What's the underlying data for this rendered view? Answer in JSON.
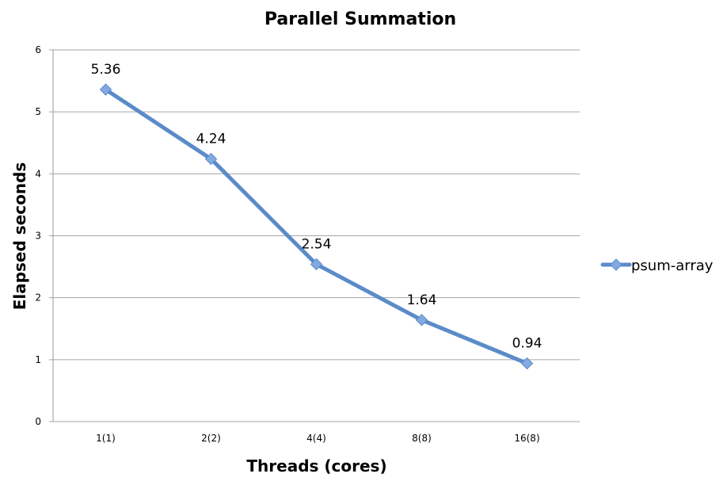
{
  "chart_data": {
    "type": "line",
    "title": "Parallel Summation",
    "xlabel": "Threads (cores)",
    "ylabel": "Elapsed seconds",
    "categories": [
      "1(1)",
      "2(2)",
      "4(4)",
      "8(8)",
      "16(8)"
    ],
    "series": [
      {
        "name": "psum-array",
        "values": [
          5.36,
          4.24,
          2.54,
          1.64,
          0.94
        ],
        "color": "#5b8bc9",
        "marker": "diamond",
        "marker_color": "#82a9e0"
      }
    ],
    "data_labels": [
      "5.36",
      "4.24",
      "2.54",
      "1.64",
      "0.94"
    ],
    "ylim": [
      0,
      6
    ],
    "yticks": [
      "0",
      "1",
      "2",
      "3",
      "4",
      "5",
      "6"
    ],
    "grid": true,
    "legend_position": "right"
  }
}
